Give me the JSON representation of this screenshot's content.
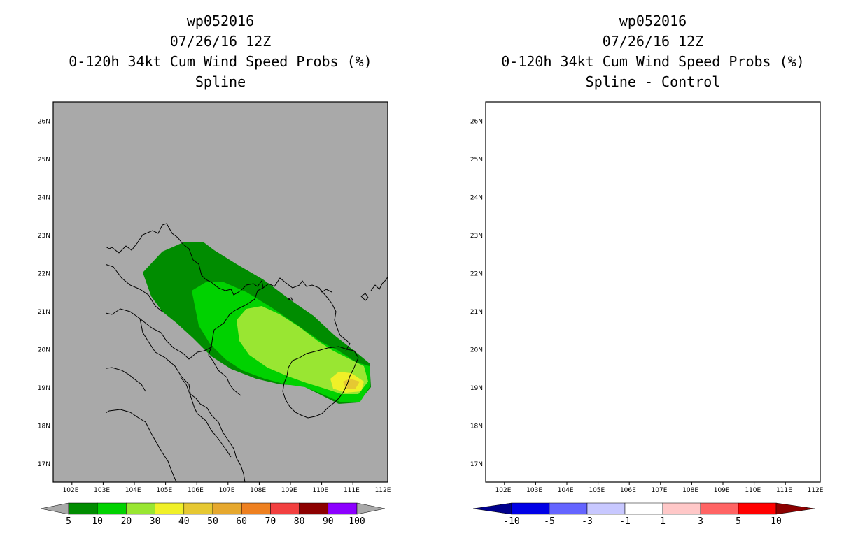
{
  "left_panel": {
    "title_lines": [
      "wp052016",
      "07/26/16 12Z",
      "0-120h 34kt Cum Wind Speed Probs (%)",
      "Spline"
    ],
    "background_color": "#a9a9a9",
    "colorbar": {
      "labels": [
        "5",
        "10",
        "20",
        "30",
        "40",
        "50",
        "60",
        "70",
        "80",
        "90",
        "100"
      ],
      "colors": [
        "#008c00",
        "#00d200",
        "#99e632",
        "#f0f028",
        "#e6c832",
        "#e6a82e",
        "#ee8020",
        "#f24040",
        "#8c0000",
        "#8c00ff"
      ],
      "end_arrow_color": "#a9a9a9"
    }
  },
  "right_panel": {
    "title_lines": [
      "wp052016",
      "07/26/16 12Z",
      "0-120h 34kt Cum Wind Speed Probs (%)",
      "Spline - Control"
    ],
    "background_color": "#ffffff",
    "colorbar": {
      "labels": [
        "-10",
        "-5",
        "-3",
        "-1",
        "1",
        "3",
        "5",
        "10"
      ],
      "colors": [
        "#0000e6",
        "#6464ff",
        "#c8c8ff",
        "#ffffff",
        "#ffc8c8",
        "#ff6464",
        "#ff0000"
      ],
      "end_colors": [
        "#00008c",
        "#8c0000"
      ]
    }
  },
  "map": {
    "lon_labels": [
      "102E",
      "103E",
      "104E",
      "105E",
      "106E",
      "107E",
      "108E",
      "109E",
      "110E",
      "111E",
      "112E"
    ],
    "lat_labels": [
      "26N",
      "25N",
      "24N",
      "23N",
      "22N",
      "21N",
      "20N",
      "19N",
      "18N",
      "17N"
    ]
  },
  "colors": {
    "grid_dash": "#bdbdbd",
    "prob_10": "#008c00",
    "prob_20": "#00d200",
    "prob_30": "#99e632",
    "prob_40": "#f0f028",
    "prob_50": "#e6c832",
    "diff_neg_3": "#c8c8ff",
    "diff_pos_1": "#ffc8c8",
    "diff_pos_3": "#ff6464",
    "diff_pos_5": "#ff0000"
  }
}
